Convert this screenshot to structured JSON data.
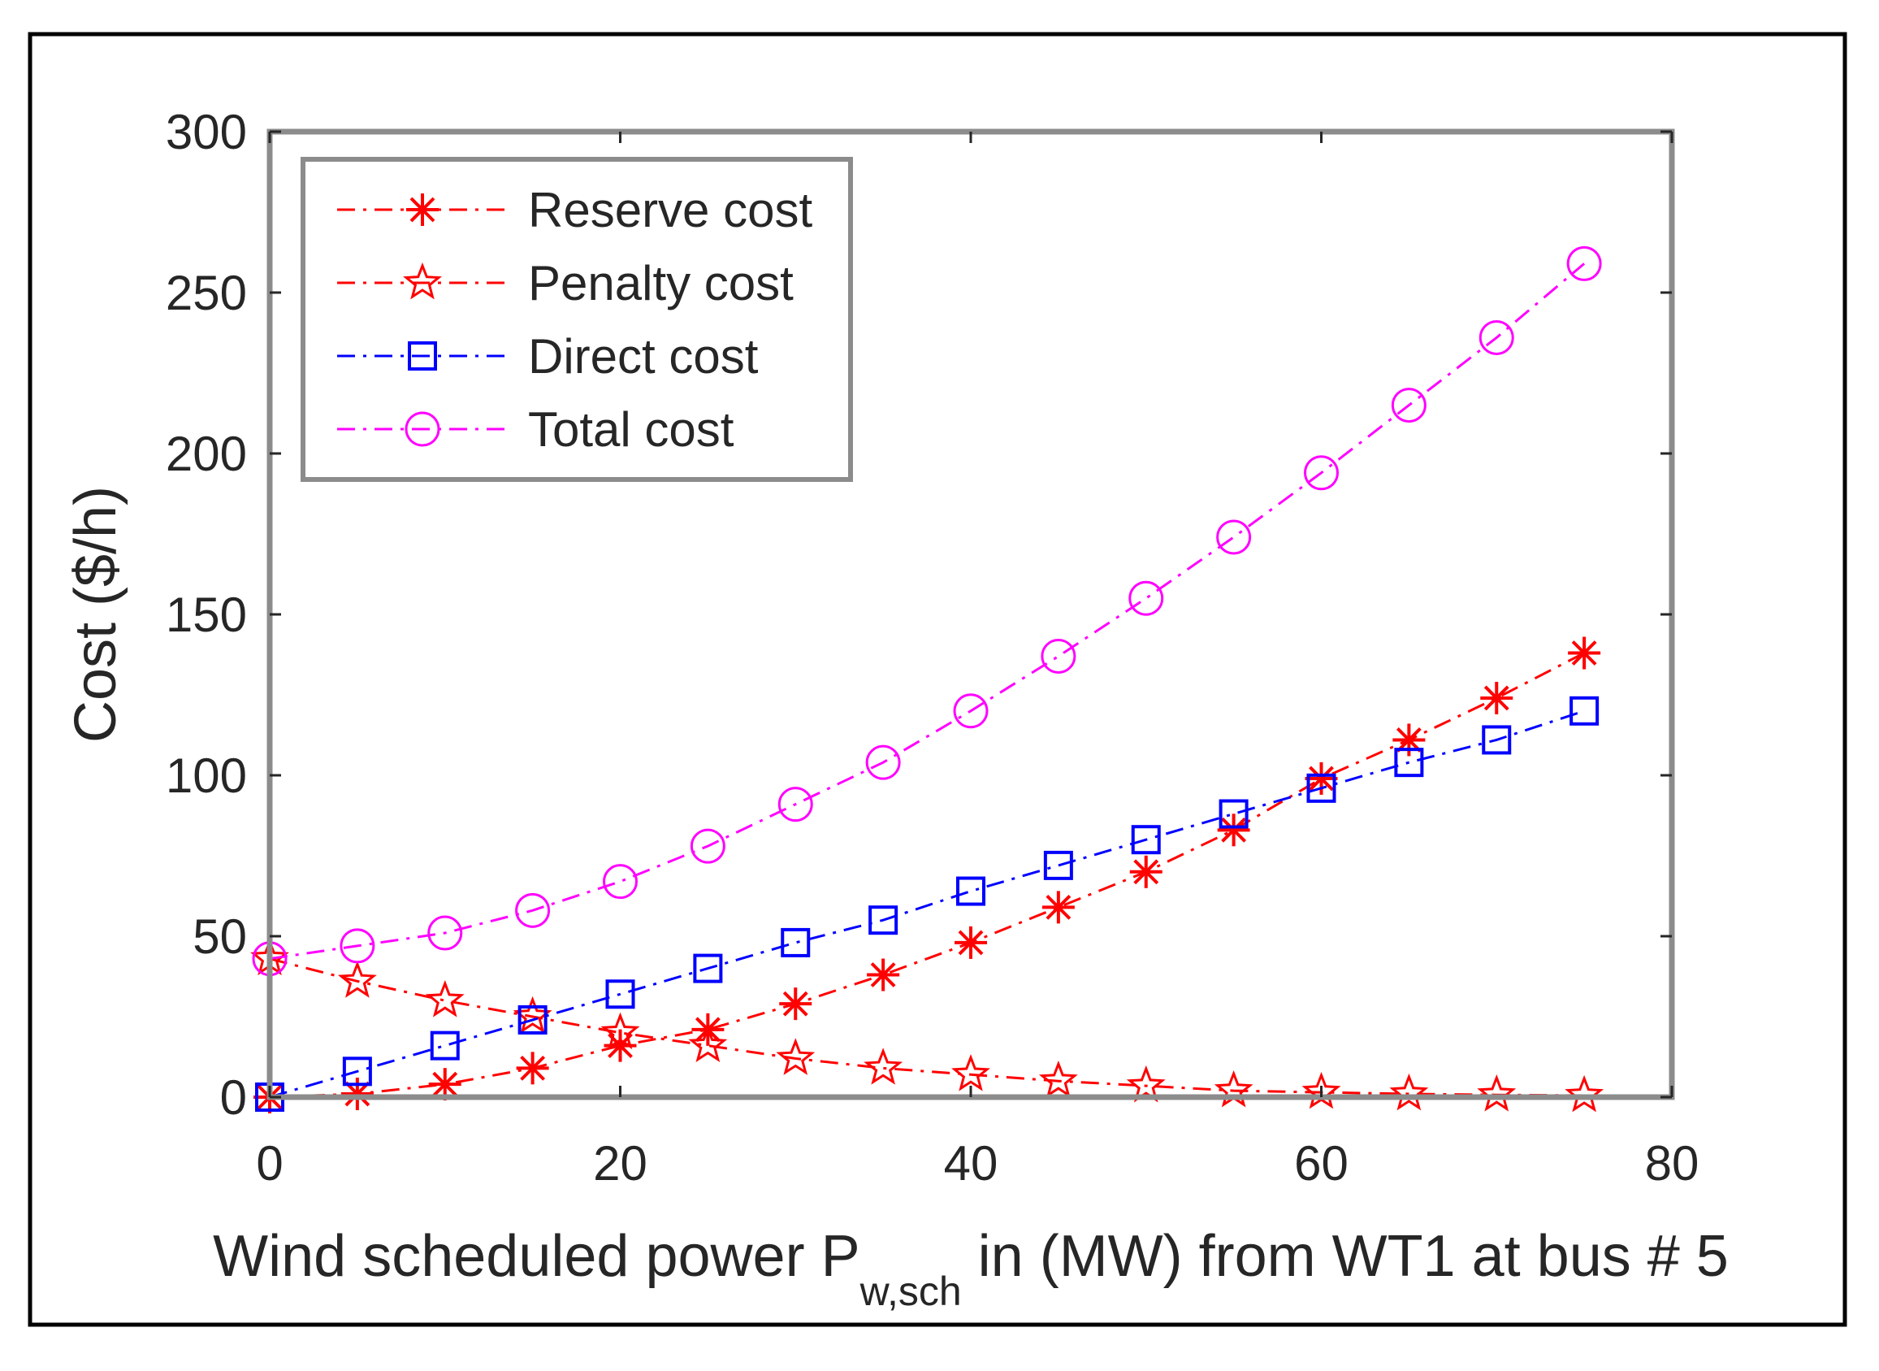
{
  "chart_data": {
    "type": "line",
    "title": "",
    "xlabel_main": "Wind scheduled power P",
    "xlabel_sub": "w,sch",
    "xlabel_rest": " in (MW) from WT1 at bus # 5",
    "ylabel": "Cost ($/h)",
    "xlim": [
      0,
      80
    ],
    "ylim": [
      0,
      300
    ],
    "xticks": [
      0,
      20,
      40,
      60,
      80
    ],
    "yticks": [
      0,
      50,
      100,
      150,
      200,
      250,
      300
    ],
    "grid": false,
    "legend_position": "top-left",
    "x": [
      0,
      5,
      10,
      15,
      20,
      25,
      30,
      35,
      40,
      45,
      50,
      55,
      60,
      65,
      70,
      75
    ],
    "series": [
      {
        "name": "Reserve cost",
        "color": "#ff0000",
        "marker": "asterisk",
        "values": [
          0,
          1,
          4,
          9,
          16,
          21,
          29,
          38,
          48,
          59,
          70,
          83,
          99,
          111,
          124,
          138
        ]
      },
      {
        "name": "Penalty cost",
        "color": "#ff0000",
        "marker": "pentagram",
        "values": [
          43,
          36,
          30,
          25,
          20,
          16,
          12,
          9,
          7,
          5,
          3.5,
          2,
          1.5,
          1,
          0.7,
          0.5
        ]
      },
      {
        "name": "Direct cost",
        "color": "#0000ff",
        "marker": "square",
        "values": [
          0,
          8,
          16,
          24,
          32,
          40,
          48,
          55,
          64,
          72,
          80,
          88,
          96,
          104,
          111,
          120
        ]
      },
      {
        "name": "Total cost",
        "color": "#ff00ff",
        "marker": "circle",
        "values": [
          43,
          47,
          51,
          58,
          67,
          78,
          91,
          104,
          120,
          137,
          155,
          174,
          194,
          215,
          236,
          259
        ]
      }
    ]
  }
}
